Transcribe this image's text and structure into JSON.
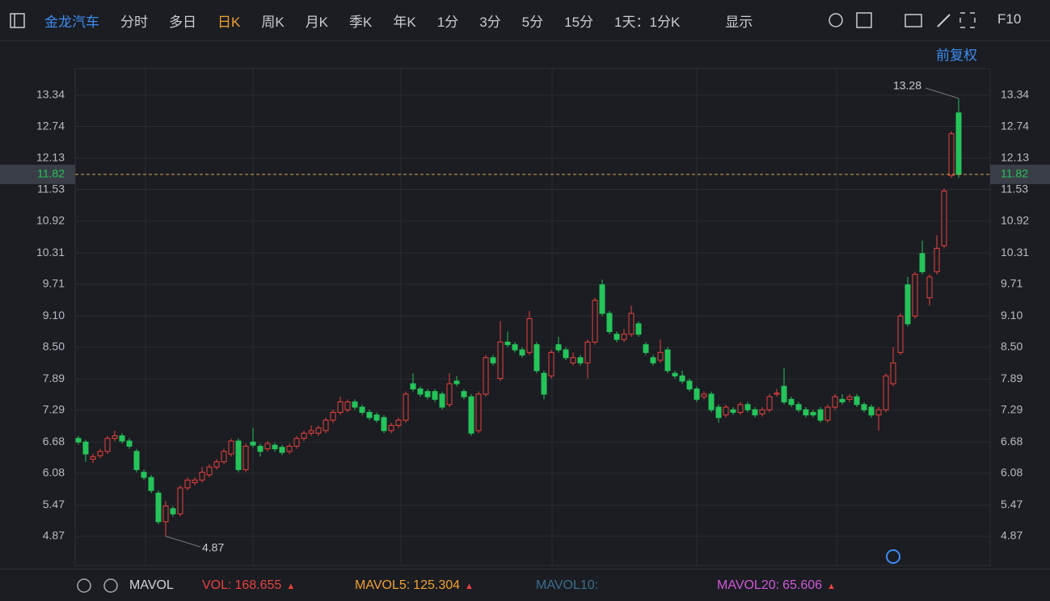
{
  "toolbar": {
    "stock": "金龙汽车",
    "tabs": [
      "分时",
      "多日",
      "日K",
      "周K",
      "月K",
      "季K",
      "年K",
      "1分",
      "3分",
      "5分",
      "15分"
    ],
    "active_tab": 2,
    "mode": "1天：1分K",
    "display": "显示",
    "f10": "F10"
  },
  "adjust": "前复权",
  "chart_data": {
    "type": "candlestick",
    "open": [
      6.75,
      6.68,
      6.35,
      6.42,
      6.5,
      6.75,
      6.8,
      6.7,
      6.5,
      6.1,
      6.0,
      5.7,
      5.15,
      5.4,
      5.3,
      5.8,
      5.9,
      5.95,
      6.05,
      6.2,
      6.3,
      6.45,
      6.7,
      6.15,
      6.68,
      6.6,
      6.55,
      6.62,
      6.58,
      6.5,
      6.6,
      6.75,
      6.85,
      6.85,
      6.9,
      7.1,
      7.25,
      7.3,
      7.45,
      7.35,
      7.25,
      7.2,
      7.15,
      6.9,
      7.0,
      7.1,
      7.8,
      7.7,
      7.65,
      7.65,
      7.6,
      7.4,
      7.85,
      7.65,
      7.55,
      6.9,
      7.6,
      8.3,
      7.9,
      8.6,
      8.55,
      8.45,
      8.4,
      8.55,
      8.0,
      7.95,
      8.55,
      8.45,
      8.2,
      8.3,
      8.2,
      8.6,
      9.7,
      9.15,
      8.75,
      8.65,
      8.75,
      8.95,
      8.55,
      8.3,
      8.25,
      8.45,
      8.0,
      7.95,
      7.85,
      7.7,
      7.55,
      7.6,
      7.35,
      7.2,
      7.3,
      7.25,
      7.4,
      7.3,
      7.22,
      7.3,
      7.6,
      7.75,
      7.5,
      7.4,
      7.3,
      7.25,
      7.3,
      7.1,
      7.35,
      7.5,
      7.5,
      7.55,
      7.4,
      7.35,
      7.2,
      7.3,
      7.8,
      8.4,
      9.7,
      9.1,
      10.3,
      9.45,
      9.95,
      10.45,
      11.8,
      13.0
    ],
    "high": [
      6.8,
      6.72,
      6.45,
      6.55,
      6.8,
      6.9,
      6.85,
      6.75,
      6.55,
      6.15,
      6.05,
      5.75,
      5.55,
      5.45,
      5.85,
      6.0,
      6.0,
      6.2,
      6.25,
      6.35,
      6.55,
      6.75,
      6.75,
      6.65,
      6.95,
      6.65,
      6.7,
      6.67,
      6.63,
      6.65,
      6.8,
      6.9,
      7.0,
      7.0,
      7.15,
      7.3,
      7.55,
      7.5,
      7.5,
      7.4,
      7.3,
      7.25,
      7.2,
      7.05,
      7.15,
      7.65,
      8.0,
      7.75,
      7.7,
      7.7,
      7.65,
      8.0,
      7.95,
      7.7,
      7.6,
      7.65,
      8.35,
      8.35,
      9.0,
      8.8,
      8.6,
      8.5,
      9.2,
      8.6,
      8.05,
      8.45,
      8.7,
      8.5,
      8.4,
      8.35,
      8.65,
      9.45,
      9.8,
      9.2,
      8.8,
      8.85,
      9.3,
      9.0,
      8.6,
      8.35,
      8.65,
      8.5,
      8.05,
      8.05,
      7.9,
      7.75,
      7.65,
      7.65,
      7.4,
      7.4,
      7.35,
      7.45,
      7.45,
      7.35,
      7.35,
      7.6,
      7.7,
      8.1,
      7.55,
      7.45,
      7.35,
      7.3,
      7.35,
      7.4,
      7.6,
      7.6,
      7.6,
      7.6,
      7.45,
      7.4,
      7.35,
      8.0,
      8.5,
      9.15,
      9.85,
      9.95,
      10.55,
      9.9,
      10.65,
      11.55,
      12.65,
      13.28
    ],
    "low": [
      6.63,
      6.3,
      6.28,
      6.37,
      6.45,
      6.7,
      6.65,
      6.55,
      6.1,
      5.95,
      5.7,
      5.1,
      4.87,
      5.25,
      5.25,
      5.75,
      5.85,
      5.9,
      6.0,
      6.15,
      6.25,
      6.4,
      6.1,
      6.1,
      6.57,
      6.4,
      6.5,
      6.5,
      6.43,
      6.45,
      6.55,
      6.7,
      6.8,
      6.8,
      6.85,
      7.05,
      7.2,
      7.25,
      7.3,
      7.2,
      7.1,
      7.05,
      6.85,
      6.85,
      6.95,
      7.05,
      7.65,
      7.55,
      7.5,
      7.45,
      7.3,
      7.35,
      7.75,
      7.5,
      6.8,
      6.85,
      7.55,
      8.15,
      7.85,
      8.5,
      8.4,
      8.3,
      8.35,
      8.0,
      7.5,
      7.9,
      8.4,
      8.25,
      8.15,
      8.15,
      7.9,
      8.55,
      9.1,
      8.75,
      8.6,
      8.6,
      8.7,
      8.7,
      8.35,
      8.15,
      8.2,
      8.0,
      7.9,
      7.8,
      7.65,
      7.45,
      7.5,
      7.25,
      7.05,
      7.15,
      7.2,
      7.2,
      7.25,
      7.15,
      7.17,
      7.25,
      7.55,
      7.4,
      7.35,
      7.25,
      7.15,
      7.15,
      7.05,
      7.05,
      7.3,
      7.4,
      7.45,
      7.35,
      7.25,
      7.15,
      6.9,
      7.25,
      7.75,
      8.35,
      8.9,
      9.05,
      9.9,
      9.3,
      9.9,
      10.4,
      11.75,
      11.75
    ],
    "close": [
      6.68,
      6.45,
      6.4,
      6.5,
      6.75,
      6.8,
      6.7,
      6.6,
      6.15,
      6.0,
      5.75,
      5.15,
      5.45,
      5.3,
      5.8,
      5.95,
      5.95,
      6.1,
      6.2,
      6.3,
      6.5,
      6.7,
      6.15,
      6.6,
      6.62,
      6.5,
      6.65,
      6.55,
      6.48,
      6.6,
      6.75,
      6.85,
      6.9,
      6.95,
      7.1,
      7.25,
      7.45,
      7.45,
      7.35,
      7.25,
      7.15,
      7.1,
      6.9,
      7.0,
      7.1,
      7.6,
      7.7,
      7.6,
      7.55,
      7.5,
      7.35,
      7.8,
      7.8,
      7.55,
      6.85,
      7.6,
      8.3,
      8.2,
      8.6,
      8.55,
      8.45,
      8.35,
      9.05,
      8.05,
      7.6,
      8.4,
      8.45,
      8.3,
      8.3,
      8.2,
      8.6,
      9.4,
      9.15,
      8.8,
      8.65,
      8.75,
      9.15,
      8.75,
      8.4,
      8.2,
      8.4,
      8.05,
      7.95,
      7.85,
      7.7,
      7.5,
      7.6,
      7.3,
      7.15,
      7.35,
      7.25,
      7.4,
      7.3,
      7.2,
      7.3,
      7.55,
      7.62,
      7.45,
      7.4,
      7.3,
      7.2,
      7.2,
      7.1,
      7.35,
      7.55,
      7.45,
      7.55,
      7.4,
      7.3,
      7.2,
      7.3,
      7.95,
      8.2,
      9.1,
      8.95,
      9.9,
      9.95,
      9.85,
      10.4,
      11.5,
      12.6,
      11.82
    ],
    "up_color": "#e8413e",
    "down_color": "#25c45a",
    "ylim": [
      4.31,
      13.85
    ],
    "yticks": [
      13.34,
      12.74,
      12.13,
      11.53,
      10.92,
      10.31,
      9.71,
      {
        "value": 9.1,
        "label": "9.10"
      },
      {
        "value": 8.5,
        "label": "8.50"
      },
      7.89,
      7.29,
      6.68,
      6.08,
      5.47,
      4.87
    ],
    "last_price": 11.82,
    "max_price": 13.28,
    "min_price": 4.87,
    "grid": true
  },
  "indicator": {
    "name": "MAVOL",
    "items": [
      {
        "label": "VOL:",
        "value": 168.655,
        "color": "#e8413e"
      },
      {
        "label": "MAVOL5:",
        "value": 125.304,
        "color": "#f0a030"
      },
      {
        "label": "MAVOL10:",
        "value": null,
        "color": "#3a6f8f"
      },
      {
        "label": "MAVOL20:",
        "value": 65.606,
        "color": "#d257d8"
      }
    ]
  }
}
